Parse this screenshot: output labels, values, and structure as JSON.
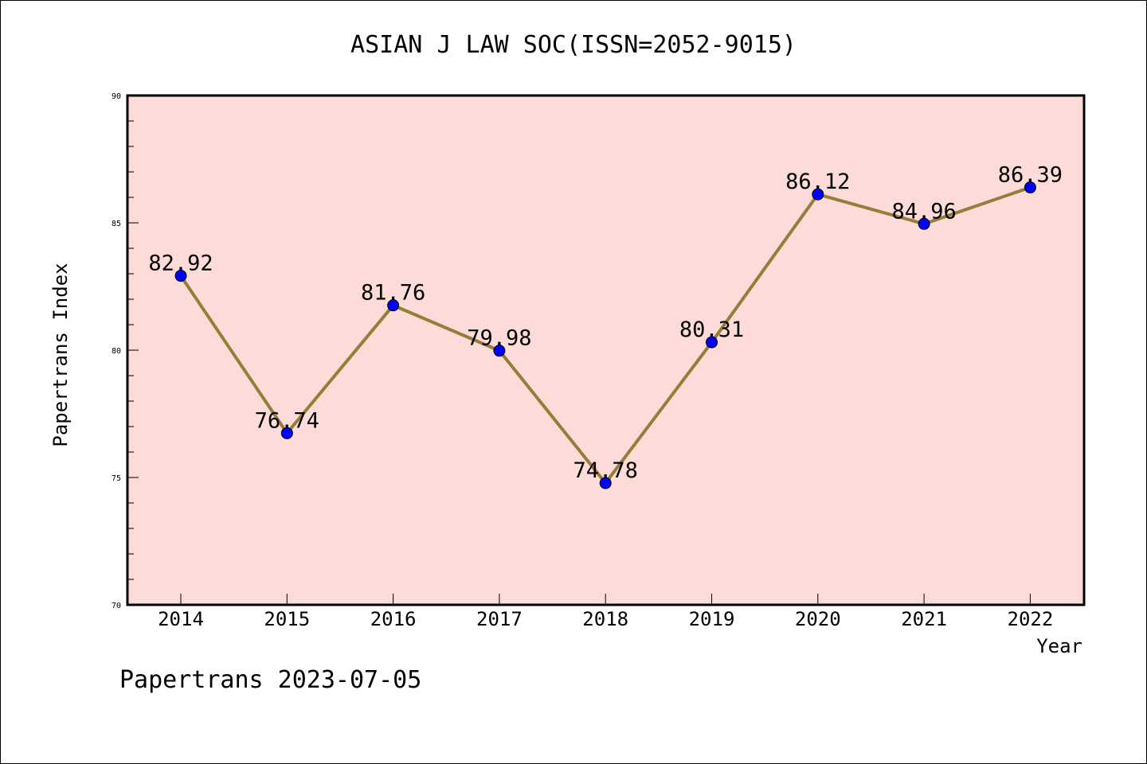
{
  "chart_data": {
    "type": "line",
    "title": "ASIAN J LAW SOC(ISSN=2052-9015)",
    "xlabel": "Year",
    "ylabel": "Papertrans Index",
    "categories": [
      "2014",
      "2015",
      "2016",
      "2017",
      "2018",
      "2019",
      "2020",
      "2021",
      "2022"
    ],
    "values": [
      82.92,
      76.74,
      81.76,
      79.98,
      74.78,
      80.31,
      86.12,
      84.96,
      86.39
    ],
    "data_labels": [
      "82.92",
      "76.74",
      "81.76",
      "79.98",
      "74.78",
      "80.31",
      "86.12",
      "84.96",
      "86.39"
    ],
    "ylim": [
      70,
      90
    ],
    "yticks": [
      70,
      75,
      80,
      85,
      90
    ],
    "ytick_labels": [
      "70",
      "75",
      "80",
      "85",
      "90"
    ],
    "grid": false,
    "legend": "none",
    "colors": {
      "plot_background": "#fddbd8",
      "line": "#967d3a",
      "marker": "#0000ff",
      "axes": "#000000"
    }
  },
  "footer": {
    "text": "Papertrans 2023-07-05"
  }
}
